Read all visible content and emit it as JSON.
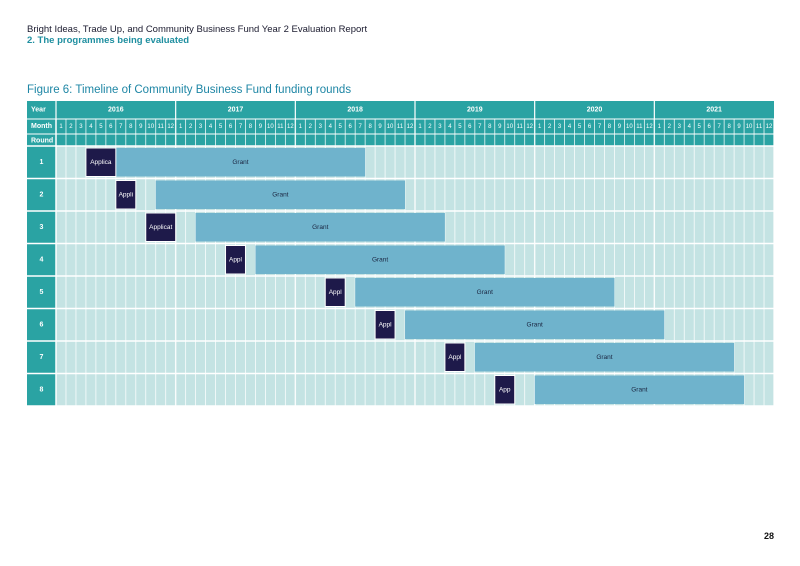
{
  "header": {
    "title": "Bright Ideas, Trade Up, and Community Business Fund Year 2 Evaluation Report",
    "section": "2. The programmes being evaluated"
  },
  "figure": {
    "title": "Figure 6: Timeline of Community Business Fund funding rounds"
  },
  "page_number": "28",
  "colors": {
    "header_teal": "#2aa3a3",
    "grid_cell": "#c4e3e3",
    "grant_bar": "#6fb3cc",
    "application_bar": "#1e1a4a"
  },
  "chart_data": {
    "type": "gantt",
    "title": "Figure 6: Timeline of Community Business Fund funding rounds",
    "row_headers": {
      "year": "Year",
      "month": "Month",
      "round": "Round"
    },
    "years": [
      "2016",
      "2017",
      "2018",
      "2019",
      "2020",
      "2021"
    ],
    "months": [
      "1",
      "2",
      "3",
      "4",
      "5",
      "6",
      "7",
      "8",
      "9",
      "10",
      "11",
      "12"
    ],
    "rounds": [
      {
        "round": "1",
        "application": {
          "label": "Applica",
          "start": "2016-04",
          "end": "2016-06"
        },
        "grant": {
          "label": "Grant",
          "start": "2016-07",
          "end": "2018-07"
        }
      },
      {
        "round": "2",
        "application": {
          "label": "Appli",
          "start": "2016-07",
          "end": "2016-08"
        },
        "grant": {
          "label": "Grant",
          "start": "2016-11",
          "end": "2018-11"
        }
      },
      {
        "round": "3",
        "application": {
          "label": "Applicat",
          "start": "2016-10",
          "end": "2016-12"
        },
        "grant": {
          "label": "Grant",
          "start": "2017-03",
          "end": "2019-03"
        }
      },
      {
        "round": "4",
        "application": {
          "label": "Appl",
          "start": "2017-06",
          "end": "2017-07"
        },
        "grant": {
          "label": "Grant",
          "start": "2017-09",
          "end": "2019-09"
        }
      },
      {
        "round": "5",
        "application": {
          "label": "Appl",
          "start": "2018-04",
          "end": "2018-05"
        },
        "grant": {
          "label": "Grant",
          "start": "2018-07",
          "end": "2020-08"
        }
      },
      {
        "round": "6",
        "application": {
          "label": "Appl",
          "start": "2018-09",
          "end": "2018-10"
        },
        "grant": {
          "label": "Grant",
          "start": "2018-12",
          "end": "2021-01"
        }
      },
      {
        "round": "7",
        "application": {
          "label": "Appl",
          "start": "2019-04",
          "end": "2019-05"
        },
        "grant": {
          "label": "Grant",
          "start": "2019-07",
          "end": "2021-08"
        }
      },
      {
        "round": "8",
        "application": {
          "label": "App",
          "start": "2019-09",
          "end": "2019-10"
        },
        "grant": {
          "label": "Grant",
          "start": "2020-01",
          "end": "2021-09"
        }
      }
    ]
  }
}
